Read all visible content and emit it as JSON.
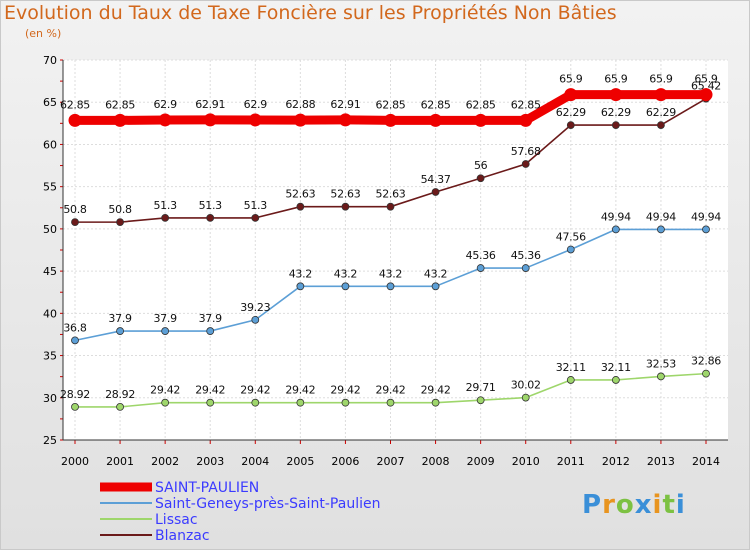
{
  "chart_data": {
    "type": "line",
    "title": "Evolution du Taux de Taxe Foncière sur les Propriétés Non Bâties",
    "ylabel": "(en %)",
    "xlabel": "",
    "ylim": [
      25,
      70
    ],
    "yticks": [
      "25",
      "30",
      "35",
      "40",
      "45",
      "50",
      "55",
      "60",
      "65",
      "70"
    ],
    "categories": [
      "2000",
      "2001",
      "2002",
      "2003",
      "2004",
      "2005",
      "2006",
      "2007",
      "2008",
      "2009",
      "2010",
      "2011",
      "2012",
      "2013",
      "2014"
    ],
    "series": [
      {
        "name": "SAINT-PAULIEN",
        "color": "#ee0000",
        "values": [
          62.85,
          62.85,
          62.9,
          62.91,
          62.9,
          62.88,
          62.91,
          62.85,
          62.85,
          62.85,
          62.85,
          65.9,
          65.9,
          65.9,
          65.9
        ],
        "labels": [
          "62.85",
          "62.85",
          "62.9",
          "62.91",
          "62.9",
          "62.88",
          "62.91",
          "62.85",
          "62.85",
          "62.85",
          "62.85",
          "65.9",
          "65.9",
          "65.9",
          "65.9"
        ]
      },
      {
        "name": "Saint-Geneys-près-Saint-Paulien",
        "color": "#5c9fd6",
        "values": [
          36.8,
          37.9,
          37.9,
          37.9,
          39.23,
          43.2,
          43.2,
          43.2,
          43.2,
          45.36,
          45.36,
          47.56,
          49.94,
          49.94,
          49.94
        ],
        "labels": [
          "36.8",
          "37.9",
          "37.9",
          "37.9",
          "39.23",
          "43.2",
          "43.2",
          "43.2",
          "43.2",
          "45.36",
          "45.36",
          "47.56",
          "49.94",
          "49.94",
          "49.94"
        ]
      },
      {
        "name": "Lissac",
        "color": "#9ed66b",
        "values": [
          28.92,
          28.92,
          29.42,
          29.42,
          29.42,
          29.42,
          29.42,
          29.42,
          29.42,
          29.71,
          30.02,
          32.11,
          32.11,
          32.53,
          32.86
        ],
        "labels": [
          "28.92",
          "28.92",
          "29.42",
          "29.42",
          "29.42",
          "29.42",
          "29.42",
          "29.42",
          "29.42",
          "29.71",
          "30.02",
          "32.11",
          "32.11",
          "32.53",
          "32.86"
        ]
      },
      {
        "name": "Blanzac",
        "color": "#6b1a1a",
        "values": [
          50.8,
          50.8,
          51.3,
          51.3,
          51.3,
          52.63,
          52.63,
          52.63,
          54.37,
          56,
          57.68,
          62.29,
          62.29,
          62.29,
          65.42
        ],
        "labels": [
          "50.8",
          "50.8",
          "51.3",
          "51.3",
          "51.3",
          "52.63",
          "52.63",
          "52.63",
          "54.37",
          "56",
          "57.68",
          "62.29",
          "62.29",
          "62.29",
          "65.42"
        ]
      }
    ],
    "legend": "bottom-left"
  },
  "logo": {
    "letters": [
      "P",
      "r",
      "o",
      "x",
      "i",
      "t",
      "i"
    ],
    "colors": [
      "#3a8fd8",
      "#e8941f",
      "#7cc142",
      "#3a8fd8",
      "#e8941f",
      "#7cc142",
      "#3a8fd8"
    ]
  }
}
